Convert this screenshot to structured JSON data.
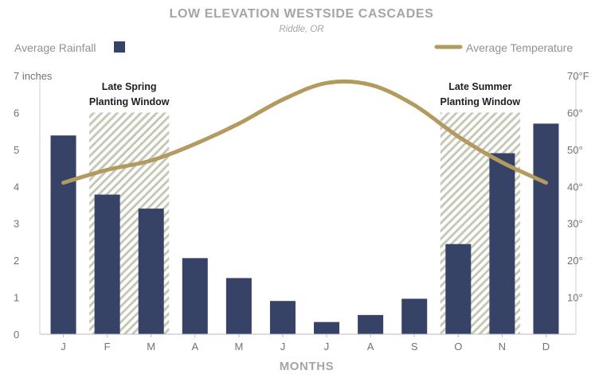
{
  "chart_data": {
    "type": "bar",
    "title": "LOW ELEVATION WESTSIDE CASCADES",
    "subtitle": "Riddle, OR",
    "xlabel": "MONTHS",
    "categories": [
      "J",
      "F",
      "M",
      "A",
      "M",
      "J",
      "J",
      "A",
      "S",
      "O",
      "N",
      "D"
    ],
    "series": [
      {
        "name": "Average Rainfall",
        "type": "bar",
        "axis": "left",
        "color": "#364367",
        "values": [
          5.38,
          3.78,
          3.4,
          2.06,
          1.52,
          0.9,
          0.33,
          0.52,
          0.96,
          2.44,
          4.9,
          5.7
        ]
      },
      {
        "name": "Average Temperature",
        "type": "line",
        "axis": "right",
        "color": "#b39a5f",
        "values": [
          41,
          44.5,
          47,
          51.5,
          57,
          63.5,
          68,
          67.5,
          62,
          53.5,
          46.5,
          41
        ]
      }
    ],
    "left_axis": {
      "range": [
        0,
        7
      ],
      "ticks": [
        0,
        1,
        2,
        3,
        4,
        5,
        6,
        7
      ],
      "tick_labels": [
        "0",
        "1",
        "2",
        "3",
        "4",
        "5",
        "6",
        "7 inches"
      ]
    },
    "right_axis": {
      "range": [
        0,
        70
      ],
      "ticks": [
        10,
        20,
        30,
        40,
        50,
        60,
        70
      ],
      "tick_labels": [
        "10°",
        "20°",
        "30°",
        "40°",
        "50°",
        "60°",
        "70°F"
      ]
    },
    "planting_windows": [
      {
        "label_line1": "Late Spring",
        "label_line2": "Planting Window",
        "start_month": 1,
        "end_month": 2,
        "top": 6
      },
      {
        "label_line1": "Late Summer",
        "label_line2": "Planting Window",
        "start_month": 9,
        "end_month": 10,
        "top": 6
      }
    ],
    "legend": [
      {
        "label": "Average Rainfall",
        "swatch": "square"
      },
      {
        "label": "Average Temperature",
        "swatch": "line"
      }
    ],
    "grid": false,
    "colors": {
      "bar": "#364367",
      "line": "#b39a5f",
      "hatch": "#c9cabb",
      "axis": "#6f7378"
    }
  }
}
